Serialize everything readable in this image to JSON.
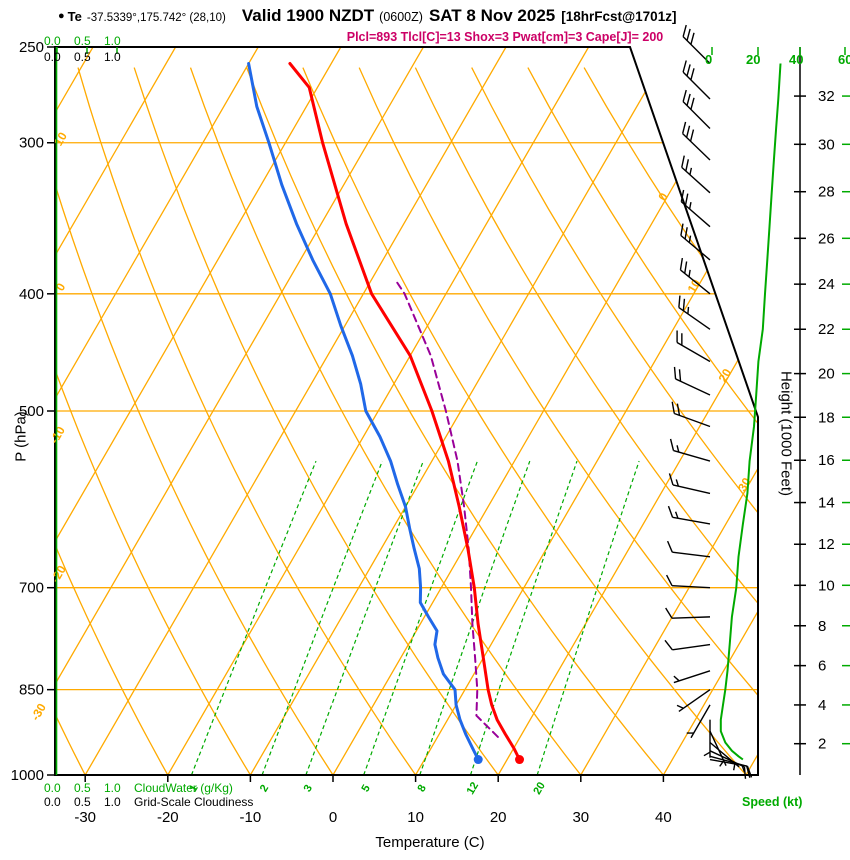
{
  "header": {
    "bullet": "●",
    "station": "Te",
    "coords": "-37.5339°,175.742° (28,10)",
    "valid_main": "Valid 1900 NZDT",
    "valid_utc": "(0600Z)",
    "valid_date": "SAT 8 Nov 2025",
    "fcst_tag": "[18hrFcst@1701z]",
    "params_line": "Plcl=893 Tlcl[C]=13 Shox=3 Pwat[cm]=3 Cape[J]= 200"
  },
  "axes": {
    "pressure_label": "P (hPa)",
    "height_label": "Height (1000 Feet)",
    "temp_label": "Temperature (C)",
    "speed_label": "Speed (kt)",
    "cloudwater_label": "CloudWater (g/Kg)",
    "cloudiness_label": "Grid-Scale Cloudiness",
    "pressure_ticks": [
      250,
      300,
      400,
      500,
      700,
      850,
      1000
    ],
    "temp_ticks": [
      -30,
      -20,
      -10,
      0,
      10,
      20,
      30,
      40
    ],
    "height_ticks": [
      2,
      4,
      6,
      8,
      10,
      12,
      14,
      16,
      18,
      20,
      22,
      24,
      26,
      28,
      30,
      32
    ],
    "speed_ticks": [
      "0",
      "20",
      "40",
      "60"
    ],
    "cloud_scale_ticks": [
      "0.0",
      "0.5",
      "1.0"
    ]
  },
  "chart_data": {
    "type": "line",
    "subtype": "skew-t-log-p-sounding",
    "pressure_axis_hpa": [
      250,
      1000
    ],
    "surface_temp_axis_c": [
      -33,
      51
    ],
    "isotherm_step_c": 10,
    "isotherm_labels_right_c": [
      0,
      10,
      20,
      30
    ],
    "adiabat_labels_left": [
      "10",
      "0",
      "-10",
      "-20",
      "-30"
    ],
    "mixing_ratio_lines_gkg": [
      1,
      2,
      3,
      5,
      8,
      12,
      20
    ],
    "series": {
      "temperature": {
        "label": "Temperature",
        "color": "#ff0000",
        "units": [
          "hPa",
          "C"
        ],
        "points": [
          [
            971,
            21.5
          ],
          [
            950,
            20
          ],
          [
            925,
            18
          ],
          [
            900,
            16
          ],
          [
            875,
            14.3
          ],
          [
            850,
            12.8
          ],
          [
            800,
            10
          ],
          [
            750,
            7
          ],
          [
            700,
            4
          ],
          [
            650,
            0.5
          ],
          [
            600,
            -3.5
          ],
          [
            550,
            -8
          ],
          [
            500,
            -13.5
          ],
          [
            450,
            -20
          ],
          [
            400,
            -29
          ],
          [
            350,
            -37
          ],
          [
            300,
            -45.5
          ],
          [
            270,
            -51
          ],
          [
            258,
            -55
          ]
        ]
      },
      "dewpoint": {
        "label": "Dewpoint",
        "color": "#2068e8",
        "units": [
          "hPa",
          "C"
        ],
        "points": [
          [
            971,
            16.5
          ],
          [
            950,
            15
          ],
          [
            925,
            13.2
          ],
          [
            900,
            11.5
          ],
          [
            875,
            10
          ],
          [
            850,
            8.8
          ],
          [
            825,
            6.3
          ],
          [
            800,
            4.5
          ],
          [
            780,
            3.2
          ],
          [
            760,
            2.5
          ],
          [
            740,
            0.5
          ],
          [
            720,
            -1.5
          ],
          [
            700,
            -2.5
          ],
          [
            675,
            -4
          ],
          [
            650,
            -6
          ],
          [
            625,
            -8
          ],
          [
            600,
            -10
          ],
          [
            575,
            -12.5
          ],
          [
            550,
            -15
          ],
          [
            525,
            -18
          ],
          [
            500,
            -21.5
          ],
          [
            475,
            -24
          ],
          [
            450,
            -27
          ],
          [
            425,
            -30.5
          ],
          [
            400,
            -34
          ],
          [
            375,
            -38.5
          ],
          [
            350,
            -43
          ],
          [
            325,
            -47.5
          ],
          [
            300,
            -52
          ],
          [
            280,
            -56
          ],
          [
            258,
            -60
          ]
        ]
      },
      "parcel": {
        "label": "Parcel path",
        "color": "#990099",
        "dashed": true,
        "units": [
          "hPa",
          "C"
        ],
        "points": [
          [
            930,
            17.3
          ],
          [
            893,
            13.2
          ],
          [
            850,
            11.5
          ],
          [
            800,
            9
          ],
          [
            750,
            6.3
          ],
          [
            700,
            3.6
          ],
          [
            650,
            0.6
          ],
          [
            600,
            -2.9
          ],
          [
            550,
            -6.9
          ],
          [
            500,
            -11.8
          ],
          [
            450,
            -17.5
          ],
          [
            400,
            -25
          ],
          [
            390,
            -27
          ]
        ]
      }
    },
    "wind_levels_p_dir_kt": [
      [
        258,
        315,
        31
      ],
      [
        276,
        315,
        30
      ],
      [
        292,
        315,
        29
      ],
      [
        310,
        314,
        28
      ],
      [
        330,
        312,
        27
      ],
      [
        352,
        311,
        26
      ],
      [
        375,
        310,
        25
      ],
      [
        400,
        309,
        24
      ],
      [
        428,
        305,
        23
      ],
      [
        455,
        300,
        21
      ],
      [
        485,
        295,
        20
      ],
      [
        515,
        290,
        19
      ],
      [
        550,
        286,
        17
      ],
      [
        585,
        283,
        16
      ],
      [
        620,
        280,
        14
      ],
      [
        660,
        277,
        12
      ],
      [
        700,
        273,
        11
      ],
      [
        740,
        268,
        9
      ],
      [
        780,
        262,
        8
      ],
      [
        820,
        252,
        7
      ],
      [
        850,
        235,
        6
      ],
      [
        875,
        210,
        5
      ],
      [
        900,
        180,
        4
      ],
      [
        920,
        155,
        4
      ],
      [
        940,
        130,
        6
      ],
      [
        955,
        115,
        9
      ],
      [
        965,
        105,
        12
      ],
      [
        971,
        100,
        14
      ]
    ],
    "cloud_water_gkg": [
      [
        1000,
        0
      ],
      [
        250,
        0
      ]
    ],
    "colors": {
      "grid": "#ffaa00",
      "green": "#00aa00",
      "frame": "#000000",
      "barb": "#000000"
    }
  }
}
